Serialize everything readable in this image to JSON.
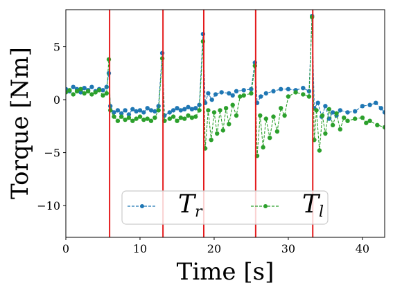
{
  "chart_data": {
    "type": "line",
    "title": "",
    "xlabel": "Time [s]",
    "ylabel": "Torque [Nm]",
    "xlim": [
      0,
      43
    ],
    "ylim": [
      -13,
      8.5
    ],
    "xticks": [
      0,
      10,
      20,
      30,
      40
    ],
    "yticks": [
      5,
      0,
      -5,
      -10
    ],
    "xtick_labels": [
      "0",
      "10",
      "20",
      "30",
      "40"
    ],
    "ytick_labels": [
      "5",
      "0",
      "−5",
      "−10"
    ],
    "grid": false,
    "legend": {
      "placement": "lower-center",
      "columns": 2,
      "entries": [
        {
          "main": "T",
          "sub": "r"
        },
        {
          "main": "T",
          "sub": "l"
        }
      ]
    },
    "vertical_lines": {
      "color": "#e41a1c",
      "x": [
        5.9,
        13.1,
        18.6,
        25.6,
        33.3
      ]
    },
    "series": [
      {
        "color": "#1f77b4",
        "style": "dashed-with-dots",
        "points": [
          [
            0,
            1.0
          ],
          [
            0.5,
            0.8
          ],
          [
            1,
            1.2
          ],
          [
            1.5,
            1.0
          ],
          [
            2,
            0.7
          ],
          [
            2.5,
            1.1
          ],
          [
            3,
            0.9
          ],
          [
            3.5,
            1.2
          ],
          [
            4,
            0.8
          ],
          [
            4.5,
            1.0
          ],
          [
            5,
            0.9
          ],
          [
            5.5,
            1.2
          ],
          [
            5.8,
            2.5
          ],
          [
            6.0,
            -0.6
          ],
          [
            6.5,
            -1.2
          ],
          [
            7,
            -1.0
          ],
          [
            7.5,
            -1.3
          ],
          [
            8,
            -1.0
          ],
          [
            8.5,
            -1.4
          ],
          [
            9,
            -0.9
          ],
          [
            9.5,
            -1.1
          ],
          [
            10,
            -1.0
          ],
          [
            10.5,
            -1.2
          ],
          [
            11,
            -0.8
          ],
          [
            11.5,
            -1.0
          ],
          [
            12,
            -1.1
          ],
          [
            12.5,
            -0.6
          ],
          [
            13.0,
            4.4
          ],
          [
            13.3,
            -1.5
          ],
          [
            14,
            -1.2
          ],
          [
            14.5,
            -1.0
          ],
          [
            15,
            -0.8
          ],
          [
            15.5,
            -1.0
          ],
          [
            16,
            -0.9
          ],
          [
            16.5,
            -0.7
          ],
          [
            17,
            -0.9
          ],
          [
            17.5,
            -0.8
          ],
          [
            18.0,
            -0.5
          ],
          [
            18.5,
            6.2
          ],
          [
            18.8,
            -0.3
          ],
          [
            19.2,
            0.6
          ],
          [
            19.7,
            0.0
          ],
          [
            20.2,
            0.5
          ],
          [
            21,
            0.7
          ],
          [
            22,
            0.6
          ],
          [
            22.5,
            0.4
          ],
          [
            23,
            0.8
          ],
          [
            24,
            0.9
          ],
          [
            25,
            1.0
          ],
          [
            25.5,
            3.5
          ],
          [
            25.8,
            -0.3
          ],
          [
            26.3,
            0.3
          ],
          [
            27,
            0.6
          ],
          [
            28,
            0.8
          ],
          [
            29,
            1.0
          ],
          [
            30,
            1.0
          ],
          [
            31,
            0.9
          ],
          [
            32,
            1.1
          ],
          [
            32.8,
            0.8
          ],
          [
            33.2,
            7.9
          ],
          [
            33.5,
            -0.8
          ],
          [
            34,
            -0.3
          ],
          [
            34.5,
            -1.6
          ],
          [
            35,
            -0.6
          ],
          [
            35.5,
            -1.8
          ],
          [
            36,
            -1.2
          ],
          [
            36.5,
            -1.5
          ],
          [
            37,
            -1.0
          ],
          [
            38,
            -1.2
          ],
          [
            39,
            -1.1
          ],
          [
            40,
            -0.6
          ],
          [
            41,
            -0.5
          ],
          [
            41.8,
            -0.3
          ],
          [
            42.5,
            -0.8
          ],
          [
            43,
            -1.2
          ]
        ]
      },
      {
        "color": "#2ca02c",
        "style": "dashed-with-dots",
        "points": [
          [
            0,
            0.7
          ],
          [
            0.5,
            0.9
          ],
          [
            1,
            0.5
          ],
          [
            1.5,
            0.8
          ],
          [
            2,
            1.0
          ],
          [
            2.5,
            0.6
          ],
          [
            3,
            0.8
          ],
          [
            3.5,
            0.5
          ],
          [
            4,
            0.7
          ],
          [
            4.5,
            0.9
          ],
          [
            5,
            0.4
          ],
          [
            5.5,
            0.6
          ],
          [
            5.8,
            3.8
          ],
          [
            6.0,
            -1.0
          ],
          [
            6.5,
            -1.6
          ],
          [
            7,
            -2.0
          ],
          [
            7.5,
            -1.6
          ],
          [
            8,
            -1.9
          ],
          [
            8.5,
            -1.7
          ],
          [
            9,
            -2.0
          ],
          [
            9.5,
            -1.8
          ],
          [
            10,
            -1.6
          ],
          [
            10.5,
            -1.9
          ],
          [
            11,
            -1.8
          ],
          [
            11.5,
            -2.0
          ],
          [
            12,
            -1.7
          ],
          [
            12.5,
            -1.0
          ],
          [
            13.0,
            3.9
          ],
          [
            13.3,
            -2.0
          ],
          [
            14,
            -1.8
          ],
          [
            14.5,
            -1.6
          ],
          [
            15,
            -2.0
          ],
          [
            15.5,
            -1.7
          ],
          [
            16,
            -1.8
          ],
          [
            16.5,
            -1.5
          ],
          [
            17,
            -1.7
          ],
          [
            17.5,
            -1.6
          ],
          [
            18.0,
            -1.0
          ],
          [
            18.5,
            5.5
          ],
          [
            18.8,
            -4.6
          ],
          [
            19.2,
            -1.0
          ],
          [
            19.6,
            -3.8
          ],
          [
            20.0,
            -1.2
          ],
          [
            20.4,
            -3.2
          ],
          [
            20.8,
            -1.0
          ],
          [
            21.2,
            -2.9
          ],
          [
            21.6,
            -0.8
          ],
          [
            22.0,
            -2.3
          ],
          [
            22.5,
            -0.5
          ],
          [
            23,
            -1.5
          ],
          [
            23.5,
            0.3
          ],
          [
            24,
            0.4
          ],
          [
            25,
            0.6
          ],
          [
            25.5,
            3.2
          ],
          [
            25.8,
            -5.3
          ],
          [
            26.2,
            -1.5
          ],
          [
            26.6,
            -4.5
          ],
          [
            27.0,
            -1.8
          ],
          [
            27.5,
            -3.6
          ],
          [
            28,
            -1.6
          ],
          [
            28.5,
            -3.0
          ],
          [
            29,
            -0.8
          ],
          [
            29.5,
            -1.5
          ],
          [
            30,
            0.3
          ],
          [
            31,
            0.7
          ],
          [
            32,
            0.5
          ],
          [
            32.8,
            0.3
          ],
          [
            33.2,
            7.8
          ],
          [
            33.5,
            -3.8
          ],
          [
            33.8,
            -1.0
          ],
          [
            34.2,
            -4.8
          ],
          [
            34.6,
            -1.5
          ],
          [
            35.0,
            -3.2
          ],
          [
            35.5,
            -0.9
          ],
          [
            36,
            -2.4
          ],
          [
            36.5,
            -1.3
          ],
          [
            37,
            -2.8
          ],
          [
            37.5,
            -1.7
          ],
          [
            38,
            -2.0
          ],
          [
            39,
            -1.8
          ],
          [
            40,
            -1.7
          ],
          [
            40.5,
            -2.2
          ],
          [
            41,
            -2.0
          ],
          [
            42,
            -2.4
          ],
          [
            43,
            -2.6
          ]
        ]
      }
    ]
  }
}
